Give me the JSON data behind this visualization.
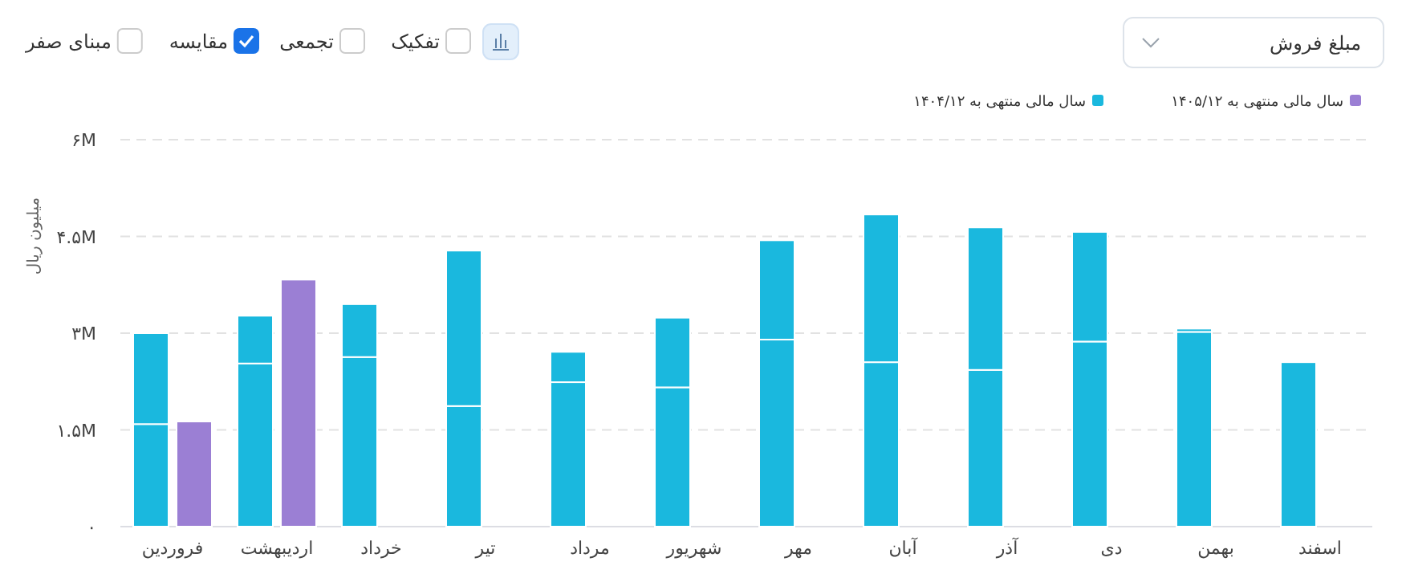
{
  "chart_data": [
    {
      "type": "bar",
      "ylabel": "میلیون ریال",
      "annotations": [
        "مبلغ فروش",
        "مبنای صفر",
        "مقایسه",
        "تجمعی",
        "تفکیک"
      ],
      "categories": [
        "فروردین",
        "اردیبهشت",
        "خرداد",
        "تیر",
        "مرداد",
        "شهریور",
        "مهر",
        "آبان",
        "آذر",
        "دی",
        "بهمن",
        "اسفند"
      ],
      "series": [
        {
          "name": "سال مالی منتهی به ۱۴۰۴/۱۲",
          "color": "#1ab8de",
          "values": [
            1.59,
            2.53,
            2.63,
            1.87,
            2.24,
            2.16,
            2.9,
            2.55,
            2.43,
            2.87,
            3.02,
            2.55
          ]
        },
        {
          "color": "#1ab8de",
          "values": [
            1.41,
            0.74,
            0.82,
            2.41,
            0.47,
            1.08,
            1.54,
            2.29,
            2.21,
            1.7,
            0.05,
            null
          ]
        }
      ],
      "stacked": true,
      "ylim": [
        0,
        6
      ],
      "yticks": [
        {
          "value": 0,
          "label": "۰"
        },
        {
          "value": 1.5,
          "label": "۱.۵M"
        },
        {
          "value": 3,
          "label": "۳M"
        },
        {
          "value": 4.5,
          "label": "۴.۵M"
        },
        {
          "value": 6,
          "label": "۶M"
        }
      ],
      "grid": "y",
      "legend": "top right"
    },
    {
      "type": "bar",
      "categories": [
        null,
        null,
        null,
        null,
        null,
        null,
        null,
        null,
        null,
        null,
        null,
        null
      ],
      "series": [
        {
          "name": "سال مالی منتهی به ۱۴۰۵/۱۲",
          "color": "#9b7fd4",
          "values": [
            1.63,
            3.83,
            null,
            null,
            null,
            null,
            null,
            null,
            null,
            null,
            null,
            null
          ]
        }
      ],
      "ylim": [
        0,
        6
      ],
      "tick_labels": false,
      "legend": "top right"
    }
  ]
}
